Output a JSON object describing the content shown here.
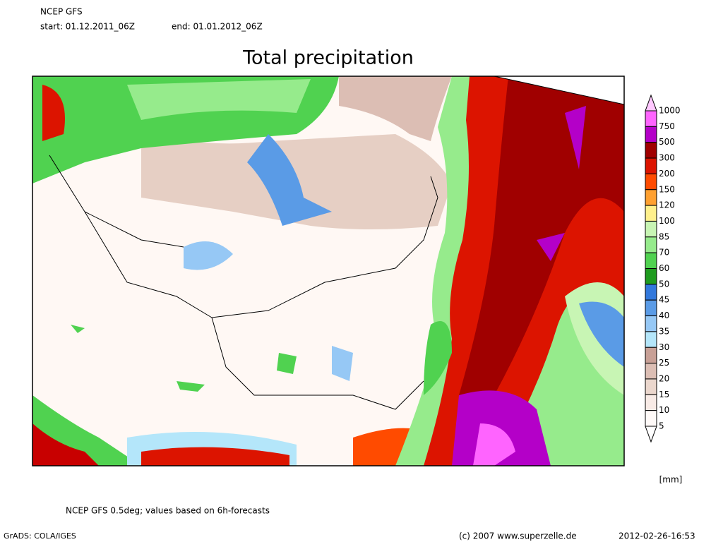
{
  "header": {
    "model": "NCEP GFS",
    "start": "start: 01.12.2011_06Z",
    "end": "end: 01.01.2012_06Z",
    "title": "Total precipitation"
  },
  "colorbar": {
    "levels": [
      1000,
      750,
      500,
      300,
      200,
      150,
      120,
      100,
      85,
      70,
      60,
      50,
      45,
      40,
      35,
      30,
      25,
      20,
      15,
      10,
      5
    ],
    "colors": [
      "#ffc8ff",
      "#ff64ff",
      "#b400c8",
      "#a00000",
      "#dc1400",
      "#ff4b00",
      "#ffa030",
      "#fff08c",
      "#c8f5b4",
      "#96eb8c",
      "#50d250",
      "#1e9b1e",
      "#3278dc",
      "#5a9be6",
      "#96c8f5",
      "#b4e6fa",
      "#c8a096",
      "#dcbeb4",
      "#ebd7cd",
      "#f8ebe6",
      "#fffaf8",
      "#ffffff"
    ],
    "unit": "[mm]"
  },
  "footer": {
    "note": "NCEP GFS 0.5deg; values based on 6h-forecasts",
    "software": "GrADS: COLA/IGES",
    "copyright": "(c) 2007 www.superzelle.de",
    "timestamp": "2012-02-26-16:53"
  }
}
